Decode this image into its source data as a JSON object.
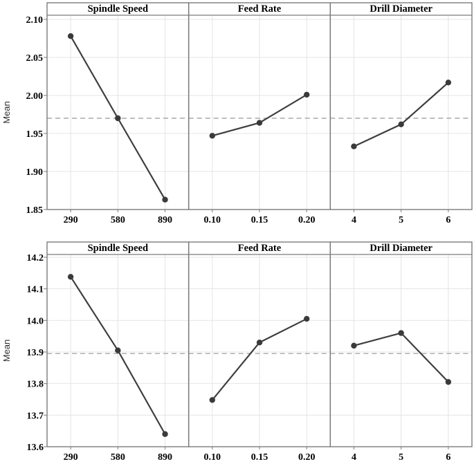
{
  "figure": {
    "description": "Main effects plots for means, two response variables",
    "ylabel": "Mean"
  },
  "colors": {
    "background": "#ffffff",
    "series_line": "#3e3e3e",
    "marker": "#3a3a3a",
    "grid": "#e4e4e4",
    "panel_border": "#7a7a7a",
    "reference_line": "#a8a8a8",
    "text": "#000000",
    "axis_label_text": "#2f2f2f"
  },
  "chart_data": [
    {
      "type": "line",
      "ylabel": "Mean",
      "ylim": [
        1.85,
        2.1
      ],
      "yticks": [
        2.1,
        2.05,
        2.0,
        1.95,
        1.9,
        1.85
      ],
      "ytick_labels": [
        "2.10",
        "2.05",
        "2.00",
        "1.95",
        "1.90",
        "1.85"
      ],
      "reference_line": 1.97,
      "grid": true,
      "panels": [
        {
          "title": "Spindle Speed",
          "categories": [
            "290",
            "580",
            "890"
          ],
          "values": [
            2.078,
            1.97,
            1.863
          ]
        },
        {
          "title": "Feed Rate",
          "categories": [
            "0.10",
            "0.15",
            "0.20"
          ],
          "values": [
            1.947,
            1.964,
            2.001
          ]
        },
        {
          "title": "Drill Diameter",
          "categories": [
            "4",
            "5",
            "6"
          ],
          "values": [
            1.933,
            1.962,
            2.017
          ]
        }
      ]
    },
    {
      "type": "line",
      "ylabel": "Mean",
      "ylim": [
        13.6,
        14.2
      ],
      "yticks": [
        14.2,
        14.1,
        14.0,
        13.9,
        13.8,
        13.7,
        13.6
      ],
      "ytick_labels": [
        "14.2",
        "14.1",
        "14.0",
        "13.9",
        "13.8",
        "13.7",
        "13.6"
      ],
      "reference_line": 13.895,
      "grid": true,
      "panels": [
        {
          "title": "Spindle Speed",
          "categories": [
            "290",
            "580",
            "890"
          ],
          "values": [
            14.138,
            13.905,
            13.64
          ]
        },
        {
          "title": "Feed Rate",
          "categories": [
            "0.10",
            "0.15",
            "0.20"
          ],
          "values": [
            13.748,
            13.93,
            14.005
          ]
        },
        {
          "title": "Drill Diameter",
          "categories": [
            "4",
            "5",
            "6"
          ],
          "values": [
            13.92,
            13.96,
            13.805
          ]
        }
      ]
    }
  ]
}
